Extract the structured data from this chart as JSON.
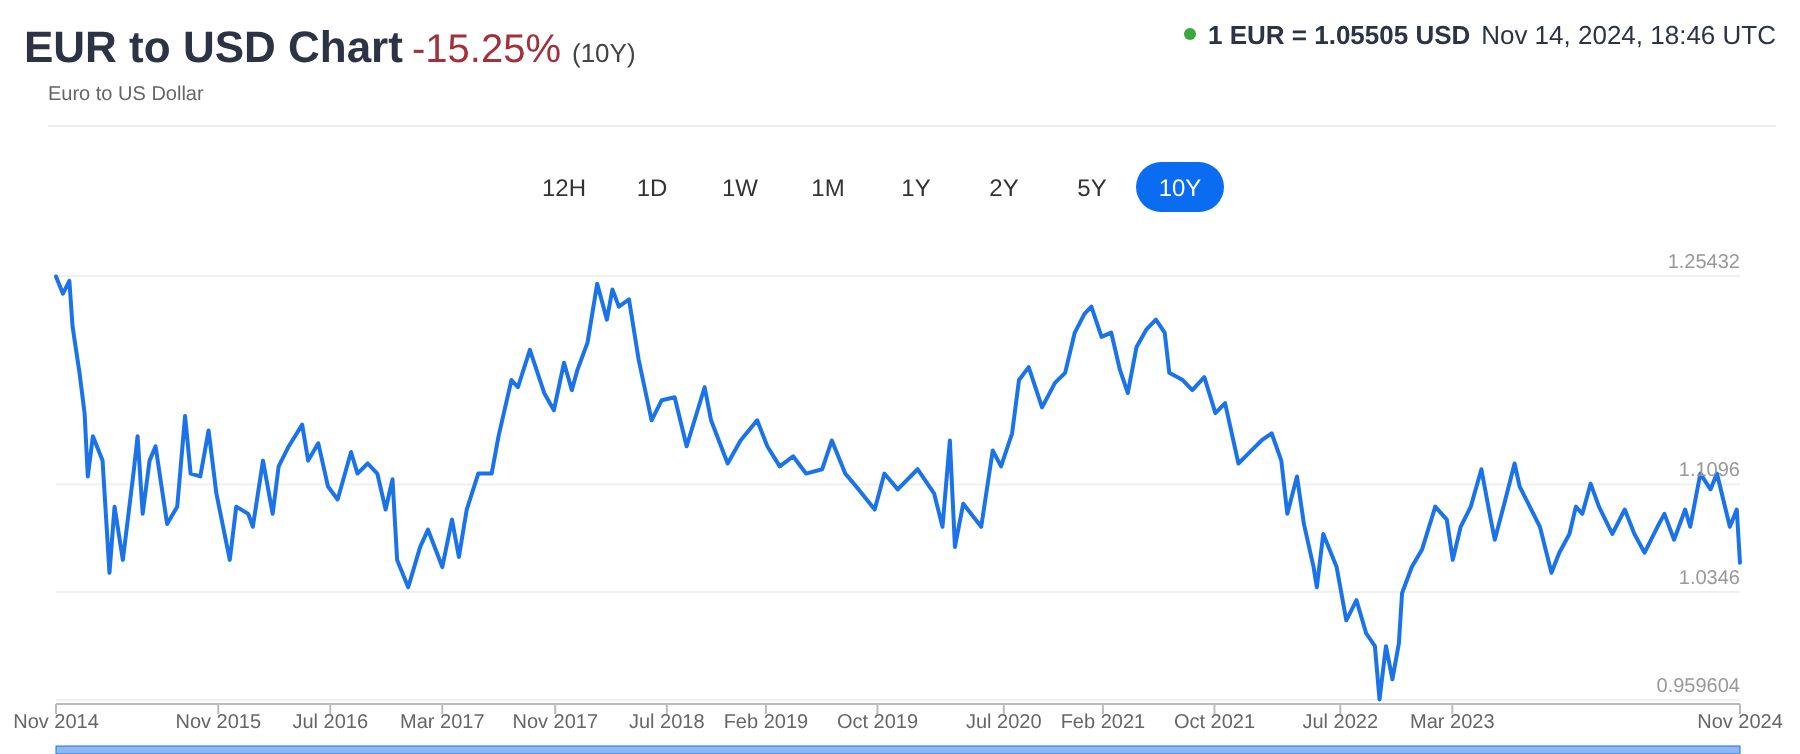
{
  "chart_data": {
    "type": "line",
    "title": "EUR to USD Chart",
    "subtitle": "Euro to US Dollar",
    "annotations": [
      "-15.25%",
      "(10Y)",
      "1 EUR = 1.05505 USD",
      "Nov 14, 2024, 18:46 UTC",
      "12H",
      "1D",
      "1W",
      "1M",
      "1Y",
      "2Y",
      "5Y",
      "10Y"
    ],
    "xlim": [
      "2014-11-14",
      "2024-11-14"
    ],
    "xticks": [
      {
        "value": "2014-11-14",
        "label": "Nov 2014"
      },
      {
        "value": "2015-11",
        "label": "Nov 2015"
      },
      {
        "value": "2016-07",
        "label": "Jul 2016"
      },
      {
        "value": "2017-03",
        "label": "Mar 2017"
      },
      {
        "value": "2017-11",
        "label": "Nov 2017"
      },
      {
        "value": "2018-07",
        "label": "Jul 2018"
      },
      {
        "value": "2019-02",
        "label": "Feb 2019"
      },
      {
        "value": "2019-10",
        "label": "Oct 2019"
      },
      {
        "value": "2020-07",
        "label": "Jul 2020"
      },
      {
        "value": "2021-02",
        "label": "Feb 2021"
      },
      {
        "value": "2021-10",
        "label": "Oct 2021"
      },
      {
        "value": "2022-07",
        "label": "Jul 2022"
      },
      {
        "value": "2023-03",
        "label": "Mar 2023"
      },
      {
        "value": "2024-11-14",
        "label": "Nov 2024"
      }
    ],
    "ylim": [
      0.959604,
      1.25432
    ],
    "yticks": [
      0.959604,
      1.0346,
      1.1096,
      1.25432
    ],
    "grid": "y",
    "marker": "none",
    "line_style": "solid",
    "x": [
      "2014-11-14",
      "2014-11-29",
      "2014-12-13",
      "2014-12-20",
      "2015-01-04",
      "2015-01-15",
      "2015-01-22",
      "2015-02-02",
      "2015-02-23",
      "2015-03-10",
      "2015-03-21",
      "2015-04-08",
      "2015-05-01",
      "2015-05-10",
      "2015-05-21",
      "2015-06-05",
      "2015-06-18",
      "2015-07-13",
      "2015-08-04",
      "2015-08-21",
      "2015-09-02",
      "2015-09-23",
      "2015-10-11",
      "2015-10-28",
      "2015-11-26",
      "2015-12-10",
      "2016-01-05",
      "2016-01-15",
      "2016-02-06",
      "2016-02-27",
      "2016-03-11",
      "2016-04-02",
      "2016-05-01",
      "2016-05-14",
      "2016-06-05",
      "2016-06-26",
      "2016-07-17",
      "2016-08-15",
      "2016-08-29",
      "2016-09-20",
      "2016-10-11",
      "2016-10-29",
      "2016-11-13",
      "2016-11-23",
      "2016-12-17",
      "2017-01-12",
      "2017-01-29",
      "2017-03-01",
      "2017-03-22",
      "2017-04-06",
      "2017-04-23",
      "2017-05-18",
      "2017-06-16",
      "2017-07-01",
      "2017-07-29",
      "2017-08-12",
      "2017-09-07",
      "2017-10-08",
      "2017-10-29",
      "2017-11-20",
      "2017-12-07",
      "2017-12-19",
      "2018-01-10",
      "2018-01-31",
      "2018-02-21",
      "2018-03-05",
      "2018-03-19",
      "2018-04-10",
      "2018-05-01",
      "2018-05-29",
      "2018-06-20",
      "2018-07-18",
      "2018-08-13",
      "2018-09-21",
      "2018-10-05",
      "2018-11-10",
      "2018-12-08",
      "2019-01-13",
      "2019-02-04",
      "2019-03-03",
      "2019-04-01",
      "2019-04-29",
      "2019-06-03",
      "2019-06-24",
      "2019-07-23",
      "2019-08-21",
      "2019-09-25",
      "2019-10-16",
      "2019-11-14",
      "2019-12-27",
      "2020-02-01",
      "2020-02-19",
      "2020-03-06",
      "2020-03-17",
      "2020-04-04",
      "2020-05-13",
      "2020-06-07",
      "2020-06-25",
      "2020-07-19",
      "2020-08-03",
      "2020-08-24",
      "2020-09-22",
      "2020-10-20",
      "2020-11-11",
      "2020-12-02",
      "2020-12-23",
      "2021-01-07",
      "2021-01-29",
      "2021-02-19",
      "2021-03-10",
      "2021-03-27",
      "2021-04-15",
      "2021-05-06",
      "2021-05-27",
      "2021-06-15",
      "2021-06-25",
      "2021-07-24",
      "2021-08-14",
      "2021-09-09",
      "2021-10-03",
      "2021-10-24",
      "2021-11-22",
      "2021-12-14",
      "2022-01-11",
      "2022-02-02",
      "2022-02-23",
      "2022-03-08",
      "2022-03-29",
      "2022-04-13",
      "2022-05-04",
      "2022-05-11",
      "2022-05-25",
      "2022-06-23",
      "2022-07-14",
      "2022-08-05",
      "2022-08-26",
      "2022-09-14",
      "2022-09-24",
      "2022-10-08",
      "2022-10-22",
      "2022-11-05",
      "2022-11-12",
      "2022-12-03",
      "2022-12-25",
      "2023-01-23",
      "2023-02-17",
      "2023-03-02",
      "2023-03-19",
      "2023-04-10",
      "2023-05-03",
      "2023-05-21",
      "2023-06-01",
      "2023-06-20",
      "2023-07-14",
      "2023-07-25",
      "2023-08-16",
      "2023-09-07",
      "2023-10-02",
      "2023-10-19",
      "2023-11-10",
      "2023-11-24",
      "2023-12-08",
      "2023-12-26",
      "2024-01-13",
      "2024-02-11",
      "2024-03-09",
      "2024-03-30",
      "2024-04-21",
      "2024-05-19",
      "2024-06-03",
      "2024-06-24",
      "2024-07-18",
      "2024-07-29",
      "2024-08-20",
      "2024-09-11",
      "2024-09-25",
      "2024-10-23",
      "2024-11-07",
      "2024-11-14"
    ],
    "series": [
      {
        "color": "#1a73e8",
        "values": [
          1.254,
          1.242,
          1.251,
          1.219,
          1.187,
          1.159,
          1.115,
          1.143,
          1.126,
          1.048,
          1.094,
          1.057,
          1.117,
          1.143,
          1.089,
          1.126,
          1.136,
          1.082,
          1.094,
          1.157,
          1.117,
          1.115,
          1.147,
          1.103,
          1.057,
          1.094,
          1.089,
          1.08,
          1.126,
          1.089,
          1.122,
          1.136,
          1.151,
          1.126,
          1.138,
          1.108,
          1.099,
          1.132,
          1.117,
          1.124,
          1.117,
          1.092,
          1.113,
          1.057,
          1.038,
          1.066,
          1.078,
          1.052,
          1.085,
          1.059,
          1.092,
          1.117,
          1.117,
          1.143,
          1.182,
          1.177,
          1.203,
          1.173,
          1.161,
          1.194,
          1.175,
          1.189,
          1.208,
          1.249,
          1.224,
          1.245,
          1.233,
          1.238,
          1.196,
          1.154,
          1.168,
          1.17,
          1.136,
          1.177,
          1.154,
          1.124,
          1.14,
          1.154,
          1.136,
          1.122,
          1.129,
          1.117,
          1.12,
          1.14,
          1.117,
          1.106,
          1.092,
          1.117,
          1.106,
          1.12,
          1.103,
          1.08,
          1.14,
          1.066,
          1.096,
          1.08,
          1.133,
          1.122,
          1.145,
          1.182,
          1.191,
          1.163,
          1.18,
          1.187,
          1.215,
          1.228,
          1.233,
          1.212,
          1.215,
          1.189,
          1.173,
          1.205,
          1.217,
          1.224,
          1.215,
          1.187,
          1.182,
          1.175,
          1.184,
          1.159,
          1.166,
          1.124,
          1.131,
          1.14,
          1.145,
          1.126,
          1.089,
          1.115,
          1.082,
          1.052,
          1.038,
          1.075,
          1.052,
          1.015,
          1.029,
          1.006,
          0.997,
          0.96,
          0.997,
          0.974,
          0.999,
          1.034,
          1.052,
          1.064,
          1.094,
          1.085,
          1.057,
          1.08,
          1.094,
          1.12,
          1.089,
          1.071,
          1.094,
          1.124,
          1.108,
          1.094,
          1.08,
          1.048,
          1.062,
          1.075,
          1.094,
          1.089,
          1.11,
          1.094,
          1.075,
          1.092,
          1.075,
          1.062,
          1.08,
          1.089,
          1.071,
          1.092,
          1.08,
          1.117,
          1.106,
          1.117,
          1.08,
          1.092,
          1.055
        ]
      }
    ]
  }
}
